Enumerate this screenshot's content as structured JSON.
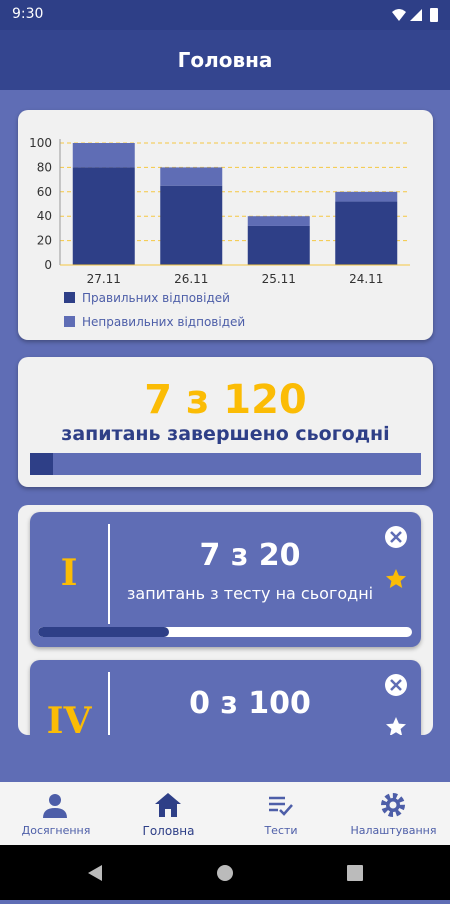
{
  "status_bar": {
    "time": "9:30"
  },
  "header": {
    "title": "Головна"
  },
  "chart_data": {
    "type": "bar",
    "stacked": true,
    "categories": [
      "27.11",
      "26.11",
      "25.11",
      "24.11"
    ],
    "series": [
      {
        "name": "Правильних відповідей",
        "color": "#2e3f87",
        "values": [
          80,
          65,
          32,
          52
        ]
      },
      {
        "name": "Неправильних відповідей",
        "color": "#5f6db5",
        "values": [
          20,
          15,
          8,
          8
        ]
      }
    ],
    "ylim": [
      0,
      100
    ],
    "yticks": [
      0,
      20,
      40,
      60,
      80,
      100
    ],
    "grid": true,
    "grid_color": "#f5c842"
  },
  "summary": {
    "done": 7,
    "separator": "з",
    "total": 120,
    "caption": "запитань завершено сьогодні"
  },
  "tests": [
    {
      "level": "I",
      "done": 7,
      "separator": "з",
      "total": 20,
      "caption": "запитань з тесту на сьогодні",
      "favorite": true
    },
    {
      "level": "IV",
      "done": 0,
      "separator": "з",
      "total": 100,
      "favorite": false
    }
  ],
  "nav": [
    {
      "label": "Досягнення"
    },
    {
      "label": "Головна",
      "active": true
    },
    {
      "label": "Тести"
    },
    {
      "label": "Налаштування"
    }
  ]
}
